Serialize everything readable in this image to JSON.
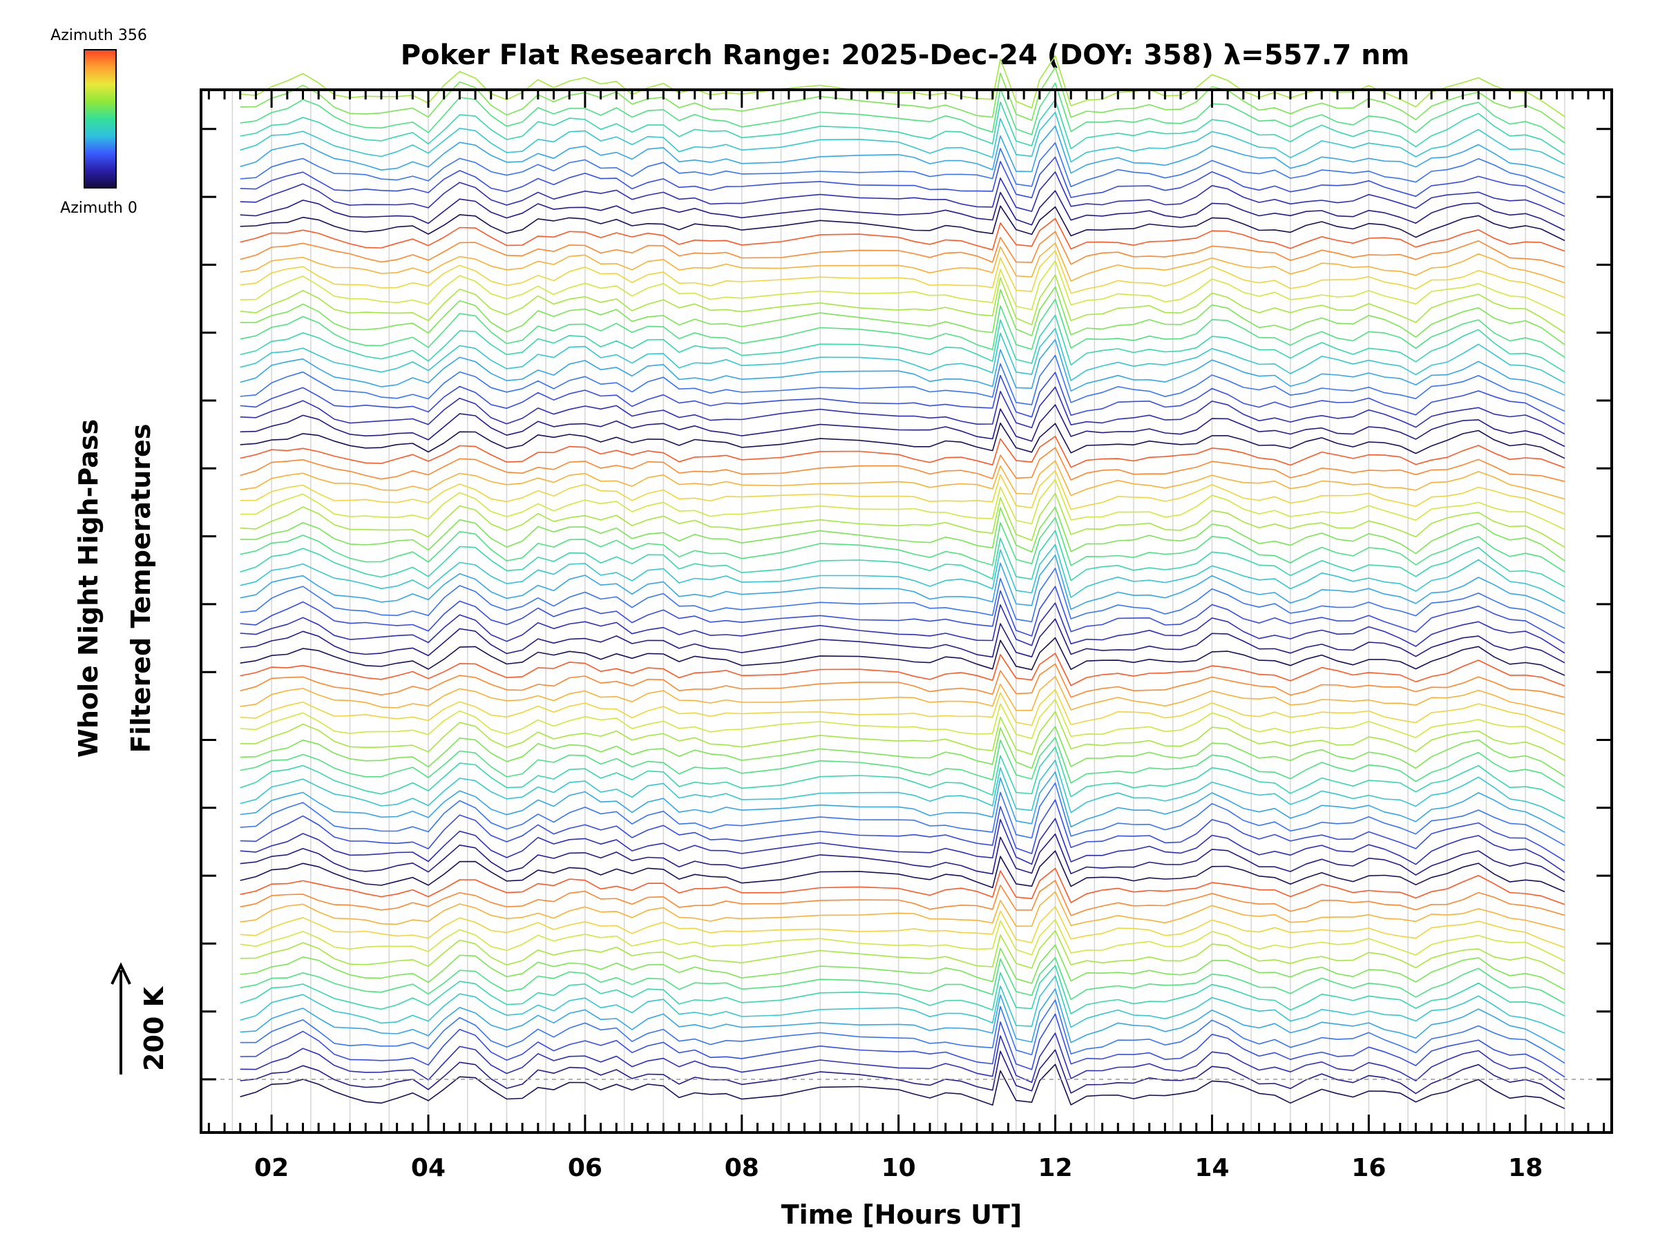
{
  "chart_data": {
    "type": "line",
    "title": "Poker Flat Research Range: 2025-Dec-24 (DOY: 358) λ=557.7 nm",
    "xlabel": "Time [Hours UT]",
    "ylabel": [
      "Whole Night High-Pass",
      "Filtered Temperatures"
    ],
    "xlim": [
      1.1,
      19.1
    ],
    "x_ticks": [
      "02",
      "04",
      "06",
      "08",
      "10",
      "12",
      "14",
      "16",
      "18"
    ],
    "x_tick_values": [
      2,
      4,
      6,
      8,
      10,
      12,
      14,
      16,
      18
    ],
    "time_start": 1.6,
    "time_end": 18.5,
    "series_count": 75,
    "azimuth_range": [
      0,
      356
    ],
    "offset_per_series_K": 20,
    "scale_indicator": "200 K",
    "baseline": "dashed",
    "grid": "vertical lines at half-hour intervals",
    "legend": {
      "type": "colorbar",
      "position": "top-left",
      "top_label": "Azimuth 356",
      "bottom_label": "Azimuth 0",
      "colormap": [
        "#140a3c",
        "#2a1fa8",
        "#3a5bff",
        "#2fc0e0",
        "#35e09a",
        "#8fe83a",
        "#e8e83a",
        "#ffa030",
        "#ff4020"
      ]
    },
    "background_color": "#ffffff",
    "axis_color": "#000000",
    "time_points": [
      1.6,
      1.8,
      2.0,
      2.2,
      2.4,
      2.6,
      2.8,
      3.0,
      3.2,
      3.4,
      3.6,
      3.8,
      4.0,
      4.2,
      4.4,
      4.6,
      4.8,
      5.0,
      5.2,
      5.4,
      5.6,
      5.8,
      6.0,
      6.2,
      6.4,
      6.6,
      6.8,
      7.0,
      7.2,
      7.4,
      7.6,
      7.8,
      8.0,
      8.5,
      9.0,
      9.5,
      10.0,
      10.2,
      10.4,
      10.6,
      10.8,
      11.0,
      11.2,
      11.3,
      11.5,
      11.7,
      11.8,
      12.0,
      12.2,
      12.4,
      12.6,
      12.8,
      13.0,
      13.2,
      13.4,
      13.6,
      13.8,
      14.0,
      14.2,
      14.4,
      14.6,
      14.8,
      15.0,
      15.2,
      15.4,
      15.6,
      15.8,
      16.0,
      16.2,
      16.4,
      16.6,
      16.8,
      17.0,
      17.2,
      17.4,
      17.6,
      17.8,
      18.0,
      18.2,
      18.5
    ],
    "base_signal_K": [
      -3,
      -2,
      3,
      5,
      8,
      4,
      -1,
      -3,
      -4,
      -5,
      -4,
      -2,
      -6,
      2,
      9,
      7,
      0,
      -4,
      -2,
      4,
      1,
      5,
      6,
      2,
      4,
      -1,
      3,
      4,
      -2,
      0,
      -2,
      -1,
      -3,
      -1,
      2,
      1,
      0,
      -1,
      -3,
      -1,
      -2,
      -4,
      -6,
      14,
      -6,
      -8,
      6,
      17,
      -8,
      -4,
      -3,
      -1,
      -2,
      -1,
      -3,
      -2,
      1,
      7,
      5,
      1,
      -2,
      -1,
      -5,
      -2,
      1,
      -1,
      -2,
      1,
      -1,
      -3,
      -7,
      -1,
      1,
      4,
      7,
      2,
      -2,
      -2,
      -5,
      -12
    ]
  }
}
